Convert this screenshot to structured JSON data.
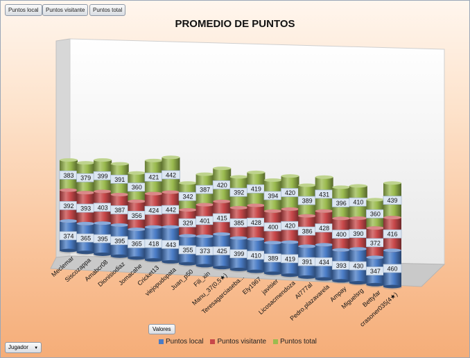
{
  "toolbar": {
    "local_label": "Puntos local",
    "visitante_label": "Puntos visitante",
    "total_label": "Puntos total",
    "valores_label": "Valores",
    "jugador_label": "Jugador",
    "dropdown_glyph": "▼"
  },
  "colors": {
    "local": "#4a7cc6",
    "visitante": "#c8484a",
    "total": "#9bbb4f"
  },
  "chart_data": {
    "type": "bar",
    "stacked": true,
    "title": "PROMEDIO DE PUNTOS",
    "legend_position": "bottom",
    "categories": [
      "Meclemar",
      "Siscozappa",
      "Amabcr08",
      "Dionisiodiaz",
      "Jomacahe",
      "Cricket13",
      "viejopudopata",
      "Juan_p50",
      "Fili_xin",
      "Manu_37(0,5★)",
      "Teresagarciaseba...",
      "Ely1967",
      "javisier",
      "Licosacmendoza",
      "Al777al",
      "Pedro.plazavarela",
      "Ampay",
      "Miguelsrg",
      "Bettyfar",
      "crasoner035(4★)"
    ],
    "series": [
      {
        "name": "Puntos local",
        "values": [
          374,
          365,
          395,
          395,
          365,
          418,
          443,
          355,
          373,
          425,
          399,
          410,
          389,
          419,
          391,
          434,
          393,
          430,
          347,
          460
        ]
      },
      {
        "name": "Puntos visitante",
        "values": [
          392,
          393,
          403,
          387,
          356,
          424,
          442,
          329,
          401,
          415,
          385,
          428,
          400,
          420,
          386,
          428,
          400,
          390,
          372,
          416
        ]
      },
      {
        "name": "Puntos total",
        "values": [
          383,
          379,
          399,
          391,
          360,
          421,
          442,
          342,
          387,
          420,
          392,
          419,
          394,
          420,
          389,
          431,
          396,
          410,
          360,
          439
        ]
      }
    ]
  }
}
